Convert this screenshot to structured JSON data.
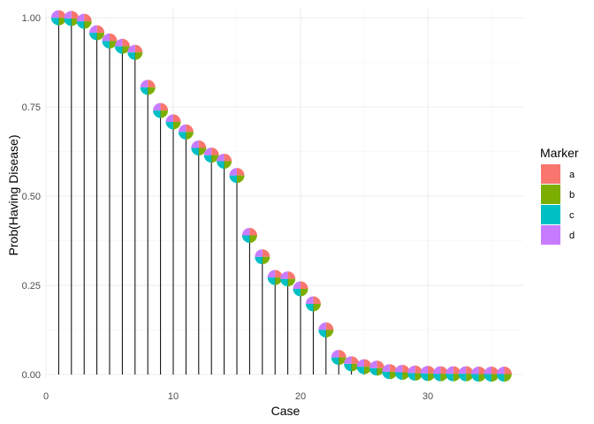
{
  "chart_data": {
    "type": "scatter",
    "subtype": "lollipop-pie",
    "title": "",
    "xlabel": "Case",
    "ylabel": "Prob(Having Disease)",
    "xlim": [
      0,
      37.5
    ],
    "ylim": [
      -0.01,
      1.03
    ],
    "x_ticks": [
      0,
      10,
      20,
      30
    ],
    "x_tick_labels": [
      "0",
      "10",
      "20",
      "30"
    ],
    "y_ticks": [
      0,
      0.25,
      0.5,
      0.75,
      1.0
    ],
    "y_tick_labels": [
      "0.00",
      "0.25",
      "0.50",
      "0.75",
      "1.00"
    ],
    "grid": true,
    "legend": {
      "title": "Marker",
      "placement": "right",
      "entries": [
        "a",
        "b",
        "c",
        "d"
      ]
    },
    "series_colors": {
      "a": "#F8766D",
      "b": "#7CAE00",
      "c": "#00BFC4",
      "d": "#C77CFF"
    },
    "pie_shares": [
      0.25,
      0.25,
      0.25,
      0.25
    ],
    "x": [
      1,
      2,
      3,
      4,
      5,
      6,
      7,
      8,
      9,
      10,
      11,
      12,
      13,
      14,
      15,
      16,
      17,
      18,
      19,
      20,
      21,
      22,
      23,
      24,
      25,
      26,
      27,
      28,
      29,
      30,
      31,
      32,
      33,
      34,
      35,
      36
    ],
    "values": [
      1.0,
      0.998,
      0.99,
      0.958,
      0.935,
      0.92,
      0.903,
      0.805,
      0.74,
      0.708,
      0.68,
      0.635,
      0.615,
      0.598,
      0.558,
      0.39,
      0.33,
      0.272,
      0.268,
      0.24,
      0.198,
      0.125,
      0.048,
      0.03,
      0.022,
      0.018,
      0.008,
      0.006,
      0.004,
      0.003,
      0.002,
      0.002,
      0.002,
      0.001,
      0.001,
      0.001
    ]
  }
}
